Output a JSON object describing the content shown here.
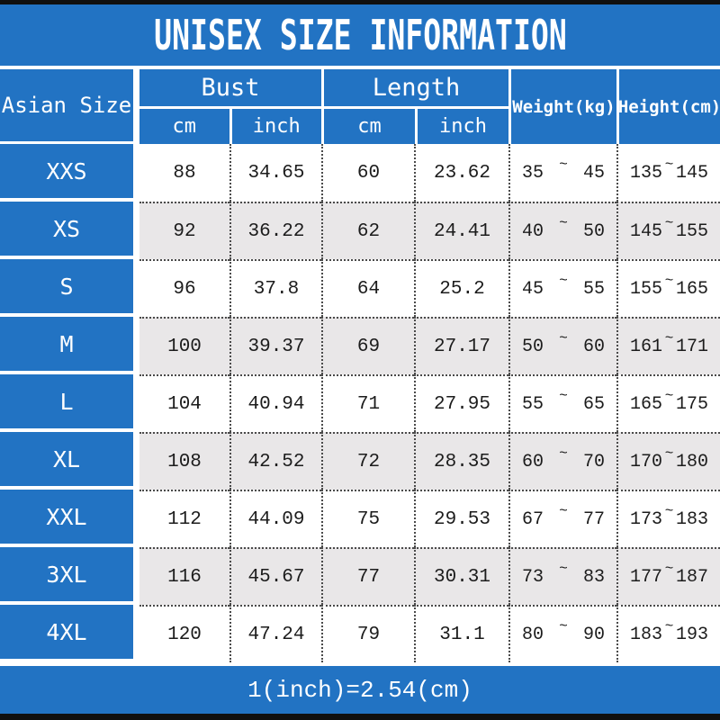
{
  "chart_data": {
    "type": "table",
    "title": "UNISEX SIZE INFORMATION",
    "header": {
      "asian_size": "Asian Size",
      "bust": "Bust",
      "length": "Length",
      "weight": "Weight(kg)",
      "height": "Height(cm)",
      "unit_cm": "cm",
      "unit_inch": "inch"
    },
    "tilde": "~",
    "rows": [
      {
        "size": "XXS",
        "bust_cm": "88",
        "bust_inch": "34.65",
        "length_cm": "60",
        "length_inch": "23.62",
        "weight_min": "35",
        "weight_max": "45",
        "height_min": "135",
        "height_max": "145"
      },
      {
        "size": "XS",
        "bust_cm": "92",
        "bust_inch": "36.22",
        "length_cm": "62",
        "length_inch": "24.41",
        "weight_min": "40",
        "weight_max": "50",
        "height_min": "145",
        "height_max": "155"
      },
      {
        "size": "S",
        "bust_cm": "96",
        "bust_inch": "37.8",
        "length_cm": "64",
        "length_inch": "25.2",
        "weight_min": "45",
        "weight_max": "55",
        "height_min": "155",
        "height_max": "165"
      },
      {
        "size": "M",
        "bust_cm": "100",
        "bust_inch": "39.37",
        "length_cm": "69",
        "length_inch": "27.17",
        "weight_min": "50",
        "weight_max": "60",
        "height_min": "161",
        "height_max": "171"
      },
      {
        "size": "L",
        "bust_cm": "104",
        "bust_inch": "40.94",
        "length_cm": "71",
        "length_inch": "27.95",
        "weight_min": "55",
        "weight_max": "65",
        "height_min": "165",
        "height_max": "175"
      },
      {
        "size": "XL",
        "bust_cm": "108",
        "bust_inch": "42.52",
        "length_cm": "72",
        "length_inch": "28.35",
        "weight_min": "60",
        "weight_max": "70",
        "height_min": "170",
        "height_max": "180"
      },
      {
        "size": "XXL",
        "bust_cm": "112",
        "bust_inch": "44.09",
        "length_cm": "75",
        "length_inch": "29.53",
        "weight_min": "67",
        "weight_max": "77",
        "height_min": "173",
        "height_max": "183"
      },
      {
        "size": "3XL",
        "bust_cm": "116",
        "bust_inch": "45.67",
        "length_cm": "77",
        "length_inch": "30.31",
        "weight_min": "73",
        "weight_max": "83",
        "height_min": "177",
        "height_max": "187"
      },
      {
        "size": "4XL",
        "bust_cm": "120",
        "bust_inch": "47.24",
        "length_cm": "79",
        "length_inch": "31.1",
        "weight_min": "80",
        "weight_max": "90",
        "height_min": "183",
        "height_max": "193"
      }
    ],
    "footnote": "1(inch)=2.54(cm)",
    "colors": {
      "accent_blue": "#2273c3",
      "alt_row_gray": "#e9e7e8",
      "frame_black": "#101010"
    }
  }
}
